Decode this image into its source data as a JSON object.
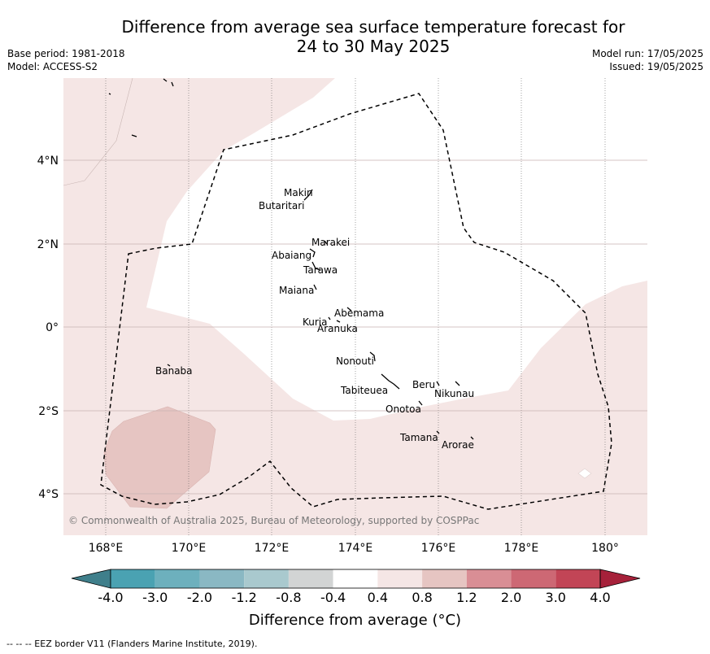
{
  "header": {
    "title": "Difference from average sea surface temperature forecast for\n24 to 30 May 2025",
    "base_period": "Base period: 1981-2018",
    "model": "Model: ACCESS-S2",
    "model_run": "Model run: 17/05/2025",
    "issued": "Issued: 19/05/2025"
  },
  "map": {
    "lon_ticks": [
      "168°E",
      "170°E",
      "172°E",
      "174°E",
      "176°E",
      "178°E",
      "180°"
    ],
    "lat_ticks": [
      "4°N",
      "2°N",
      "0°",
      "2°S",
      "4°S"
    ],
    "copyright": "© Commonwealth of Australia 2025, Bureau of Meteorology, supported by COSPPac",
    "islands": [
      {
        "name": "Makin"
      },
      {
        "name": "Butaritari"
      },
      {
        "name": "Marakei"
      },
      {
        "name": "Abaiang"
      },
      {
        "name": "Tarawa"
      },
      {
        "name": "Maiana"
      },
      {
        "name": "Abemama"
      },
      {
        "name": "Kuria"
      },
      {
        "name": "Aranuka"
      },
      {
        "name": "Nonouti"
      },
      {
        "name": "Banaba"
      },
      {
        "name": "Tabiteuea"
      },
      {
        "name": "Beru"
      },
      {
        "name": "Nikunau"
      },
      {
        "name": "Onotoa"
      },
      {
        "name": "Tamana"
      },
      {
        "name": "Arorae"
      }
    ],
    "colors": {
      "band_0.4_0.8": "#f5e6e5",
      "band_0.8_1.2": "#e6c5c2",
      "grid": "#c9b3b3",
      "eez_border": "#000000"
    }
  },
  "colorbar": {
    "ticks": [
      "-4.0",
      "-3.0",
      "-2.0",
      "-1.2",
      "-0.8",
      "-0.4",
      "0.4",
      "0.8",
      "1.2",
      "2.0",
      "3.0",
      "4.0"
    ],
    "colors": [
      "#3f7f8b",
      "#4aa2b2",
      "#6db0bd",
      "#8ab8c3",
      "#a9c9ce",
      "#d2d4d4",
      "#ffffff",
      "#f5e6e5",
      "#e6c5c2",
      "#d98e95",
      "#cd6874",
      "#c24556",
      "#a6213a"
    ],
    "label": "Difference from average (°C)"
  },
  "footnote": "--  --  -- EEZ border V11 (Flanders Marine Institute, 2019)."
}
